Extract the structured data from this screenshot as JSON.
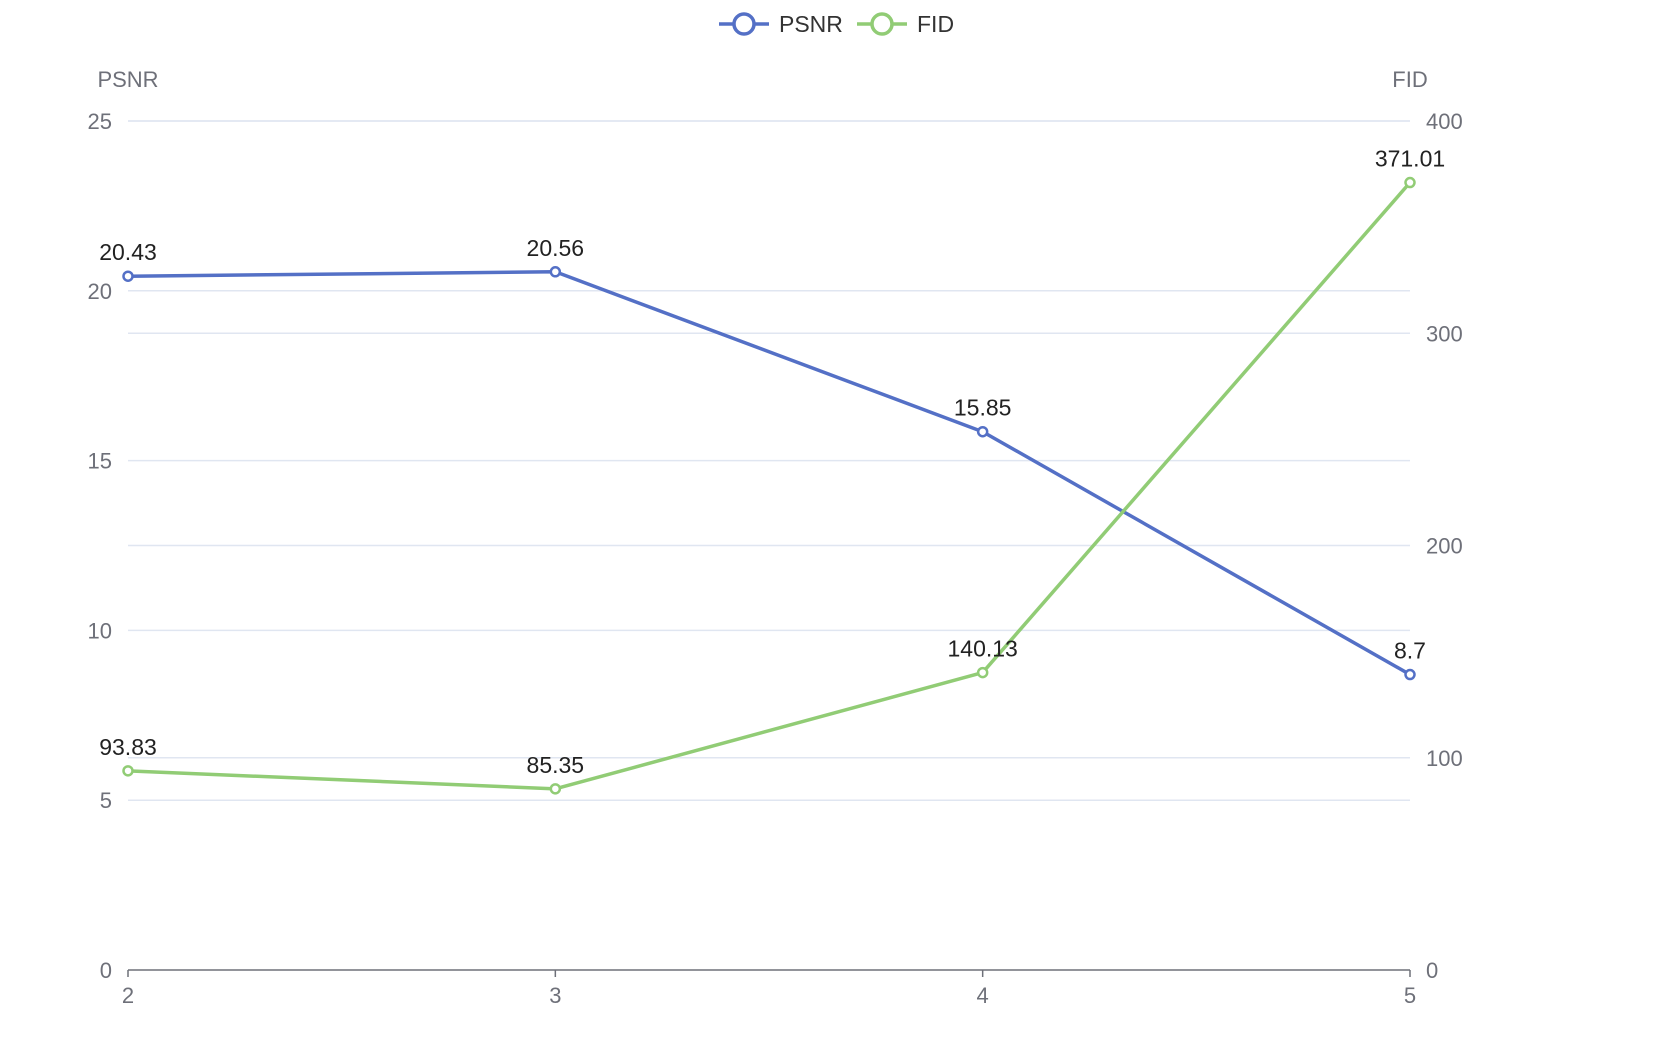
{
  "chart_data": {
    "type": "line",
    "x": [
      2,
      3,
      4,
      5
    ],
    "x_tick_labels": [
      "2",
      "3",
      "4",
      "5"
    ],
    "legend": {
      "position": "top-center",
      "items": [
        "PSNR",
        "FID"
      ]
    },
    "grid": true,
    "y_left": {
      "name": "PSNR",
      "range": [
        0,
        25
      ],
      "tick_values": [
        0,
        5,
        10,
        15,
        20,
        25
      ],
      "tick_labels": [
        "0",
        "5",
        "10",
        "15",
        "20",
        "25"
      ]
    },
    "y_right": {
      "name": "FID",
      "range": [
        0,
        400
      ],
      "tick_values": [
        0,
        100,
        200,
        300,
        400
      ],
      "tick_labels": [
        "0",
        "100",
        "200",
        "300",
        "400"
      ]
    },
    "series": [
      {
        "name": "PSNR",
        "axis": "left",
        "color": "#5470c6",
        "values": [
          20.43,
          20.56,
          15.85,
          8.7
        ],
        "labels": [
          "20.43",
          "20.56",
          "15.85",
          "8.7"
        ]
      },
      {
        "name": "FID",
        "axis": "right",
        "color": "#91cc75",
        "values": [
          93.83,
          85.35,
          140.13,
          371.01
        ],
        "labels": [
          "93.83",
          "85.35",
          "140.13",
          "371.01"
        ]
      }
    ]
  }
}
